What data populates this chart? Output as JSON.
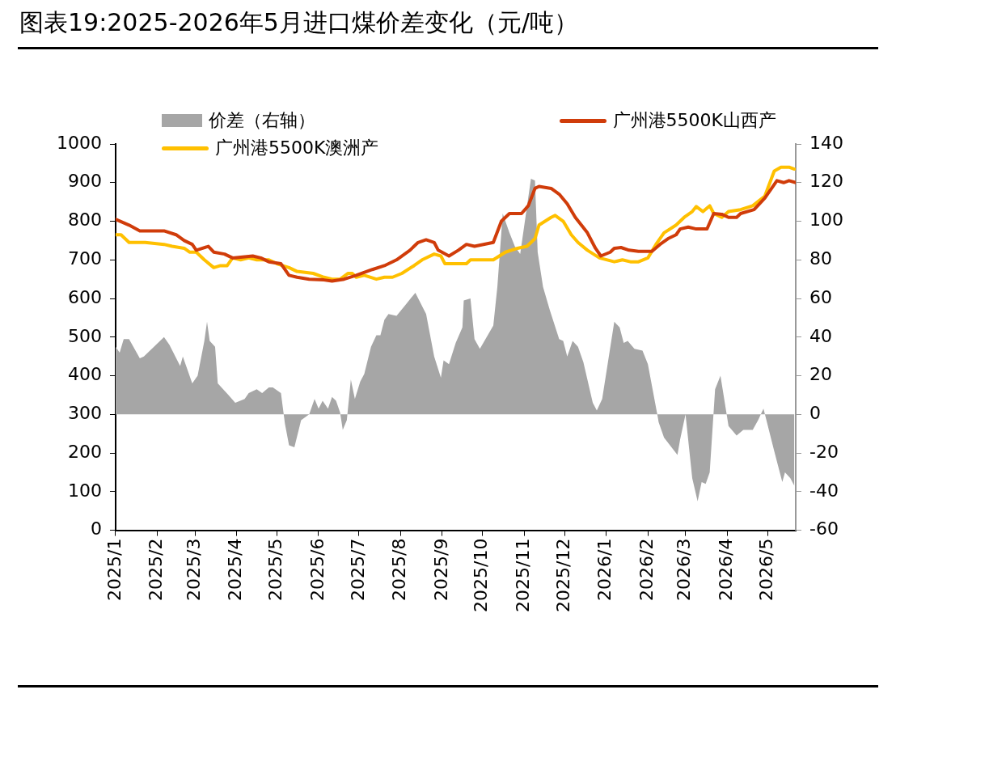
{
  "chart_data": {
    "type": "line",
    "title": "图表19:2025-2026年5月进口煤价差变化（元/吨）",
    "xlim": [
      "2025-01-01",
      "2026-05-22"
    ],
    "xticks": [
      {
        "value": "2025-01",
        "label": "2025/1"
      },
      {
        "value": "2025-02",
        "label": "2025/2"
      },
      {
        "value": "2025-03",
        "label": "2025/3"
      },
      {
        "value": "2025-04",
        "label": "2025/4"
      },
      {
        "value": "2025-05",
        "label": "2025/5"
      },
      {
        "value": "2025-06",
        "label": "2025/6"
      },
      {
        "value": "2025-07",
        "label": "2025/7"
      },
      {
        "value": "2025-08",
        "label": "2025/8"
      },
      {
        "value": "2025-09",
        "label": "2025/9"
      },
      {
        "value": "2025-10",
        "label": "2025/10"
      },
      {
        "value": "2025-11",
        "label": "2025/11"
      },
      {
        "value": "2025-12",
        "label": "2025/12"
      },
      {
        "value": "2026-01",
        "label": "2026/1"
      },
      {
        "value": "2026-02",
        "label": "2026/2"
      },
      {
        "value": "2026-03",
        "label": "2026/3"
      },
      {
        "value": "2026-04",
        "label": "2026/4"
      },
      {
        "value": "2026-05",
        "label": "2026/5"
      }
    ],
    "ylim": [
      0,
      1000
    ],
    "yticks": [
      0,
      100,
      200,
      300,
      400,
      500,
      600,
      700,
      800,
      900,
      1000
    ],
    "y2lim": [
      -60,
      140
    ],
    "y2ticks": [
      -60,
      -40,
      -20,
      0,
      20,
      40,
      60,
      80,
      100,
      120,
      140
    ],
    "legend": "top",
    "grid": false,
    "marker": "none",
    "series": [
      {
        "name": "价差（右轴）",
        "type": "area",
        "axis": "y2",
        "color": "#a6a6a6",
        "x": [
          "2025-01-01",
          "2025-01-04",
          "2025-01-07",
          "2025-01-11",
          "2025-01-19",
          "2025-01-22",
          "2025-02-06",
          "2025-02-10",
          "2025-02-18",
          "2025-02-20",
          "2025-02-23",
          "2025-02-27",
          "2025-03-03",
          "2025-03-08",
          "2025-03-10",
          "2025-03-12",
          "2025-03-16",
          "2025-03-18",
          "2025-03-26",
          "2025-03-31",
          "2025-04-07",
          "2025-04-10",
          "2025-04-16",
          "2025-04-20",
          "2025-04-25",
          "2025-04-28",
          "2025-05-04",
          "2025-05-07",
          "2025-05-10",
          "2025-05-14",
          "2025-05-19",
          "2025-05-25",
          "2025-05-29",
          "2025-06-01",
          "2025-06-04",
          "2025-06-08",
          "2025-06-11",
          "2025-06-14",
          "2025-06-17",
          "2025-06-19",
          "2025-06-22",
          "2025-06-25",
          "2025-06-28",
          "2025-07-02",
          "2025-07-05",
          "2025-07-10",
          "2025-07-14",
          "2025-07-17",
          "2025-07-20",
          "2025-07-23",
          "2025-07-29",
          "2025-08-05",
          "2025-08-12",
          "2025-08-20",
          "2025-08-26",
          "2025-08-31",
          "2025-09-02",
          "2025-09-06",
          "2025-09-11",
          "2025-09-16",
          "2025-09-17",
          "2025-09-22",
          "2025-09-25",
          "2025-09-29",
          "2025-10-09",
          "2025-10-12",
          "2025-10-16",
          "2025-10-21",
          "2025-10-25",
          "2025-10-29",
          "2025-11-06",
          "2025-11-09",
          "2025-11-11",
          "2025-11-15",
          "2025-11-20",
          "2025-11-27",
          "2025-11-30",
          "2025-12-03",
          "2025-12-07",
          "2025-12-11",
          "2025-12-15",
          "2025-12-22",
          "2025-12-25",
          "2025-12-29",
          "2026-01-07",
          "2026-01-11",
          "2026-01-14",
          "2026-01-17",
          "2026-01-22",
          "2026-01-28",
          "2026-02-01",
          "2026-02-08",
          "2026-02-09",
          "2026-02-13",
          "2026-02-23",
          "2026-02-25",
          "2026-03-01",
          "2026-03-06",
          "2026-03-10",
          "2026-03-13",
          "2026-03-16",
          "2026-03-19",
          "2026-03-23",
          "2026-03-27",
          "2026-04-02",
          "2026-04-08",
          "2026-04-13",
          "2026-04-20",
          "2026-04-24",
          "2026-04-28",
          "2026-05-06",
          "2026-05-12",
          "2026-05-14",
          "2026-05-18",
          "2026-05-21"
        ],
        "values": [
          35,
          32,
          39,
          39,
          29,
          30,
          40,
          36,
          25,
          30,
          24,
          16,
          20,
          38,
          48,
          38,
          35,
          16,
          10,
          6,
          8,
          11,
          13,
          11,
          14,
          14,
          11,
          -5,
          -16,
          -17,
          -3,
          0,
          8,
          3,
          7,
          3,
          9,
          7,
          1,
          -8,
          -3,
          18,
          8,
          17,
          21,
          35,
          41,
          41,
          49,
          52,
          51,
          57,
          63,
          52,
          30,
          19,
          28,
          26,
          37,
          45,
          59,
          60,
          39,
          34,
          46,
          66,
          104,
          94,
          87,
          83,
          122,
          121,
          84,
          66,
          54,
          39,
          38,
          30,
          38,
          35,
          27,
          6,
          2,
          8,
          48,
          45,
          37,
          38,
          34,
          33,
          26,
          0,
          -4,
          -12,
          -21,
          -13,
          0,
          -33,
          -45,
          -35,
          -36,
          -30,
          13,
          20,
          -6,
          -11,
          -8,
          -8,
          -3,
          3,
          -19,
          -35,
          -30,
          -33,
          -37
        ]
      },
      {
        "name": "广州港5500K山西产",
        "type": "line",
        "color": "#d03c0a",
        "x": [
          "2025-01-01",
          "2025-01-11",
          "2025-01-19",
          "2025-02-06",
          "2025-02-15",
          "2025-02-21",
          "2025-02-27",
          "2025-03-02",
          "2025-03-11",
          "2025-03-15",
          "2025-03-23",
          "2025-03-29",
          "2025-04-13",
          "2025-04-19",
          "2025-04-25",
          "2025-05-04",
          "2025-05-10",
          "2025-05-16",
          "2025-05-25",
          "2025-06-05",
          "2025-06-11",
          "2025-06-20",
          "2025-06-29",
          "2025-07-11",
          "2025-07-20",
          "2025-07-29",
          "2025-08-08",
          "2025-08-14",
          "2025-08-20",
          "2025-08-26",
          "2025-08-29",
          "2025-09-06",
          "2025-09-13",
          "2025-09-19",
          "2025-09-25",
          "2025-10-09",
          "2025-10-15",
          "2025-10-21",
          "2025-10-30",
          "2025-11-04",
          "2025-11-09",
          "2025-11-12",
          "2025-11-21",
          "2025-11-27",
          "2025-12-03",
          "2025-12-09",
          "2025-12-18",
          "2025-12-24",
          "2025-12-28",
          "2026-01-04",
          "2026-01-07",
          "2026-01-12",
          "2026-01-18",
          "2026-01-25",
          "2026-02-04",
          "2026-02-10",
          "2026-02-16",
          "2026-02-22",
          "2026-02-25",
          "2026-03-03",
          "2026-03-09",
          "2026-03-17",
          "2026-03-22",
          "2026-03-28",
          "2026-04-02",
          "2026-04-08",
          "2026-04-11",
          "2026-04-21",
          "2026-04-29",
          "2026-05-08",
          "2026-05-13",
          "2026-05-17",
          "2026-05-22"
        ],
        "values": [
          805,
          790,
          775,
          775,
          765,
          750,
          740,
          725,
          735,
          720,
          715,
          705,
          710,
          705,
          695,
          690,
          660,
          655,
          650,
          648,
          645,
          650,
          660,
          675,
          685,
          700,
          725,
          745,
          752,
          745,
          725,
          710,
          725,
          740,
          735,
          745,
          800,
          820,
          820,
          840,
          885,
          890,
          885,
          870,
          845,
          810,
          770,
          730,
          710,
          720,
          730,
          732,
          725,
          722,
          722,
          740,
          755,
          765,
          780,
          785,
          780,
          780,
          820,
          818,
          810,
          810,
          820,
          830,
          860,
          905,
          900,
          905,
          900
        ]
      },
      {
        "name": "广州港5500K澳洲产",
        "type": "line",
        "color": "#ffc000",
        "x": [
          "2025-01-01",
          "2025-01-05",
          "2025-01-11",
          "2025-01-23",
          "2025-02-06",
          "2025-02-12",
          "2025-02-21",
          "2025-02-25",
          "2025-03-02",
          "2025-03-08",
          "2025-03-15",
          "2025-03-20",
          "2025-03-25",
          "2025-03-29",
          "2025-04-04",
          "2025-04-10",
          "2025-04-16",
          "2025-04-25",
          "2025-05-01",
          "2025-05-10",
          "2025-05-16",
          "2025-05-28",
          "2025-06-05",
          "2025-06-11",
          "2025-06-17",
          "2025-06-23",
          "2025-06-26",
          "2025-06-29",
          "2025-07-05",
          "2025-07-14",
          "2025-07-20",
          "2025-07-26",
          "2025-08-02",
          "2025-08-11",
          "2025-08-17",
          "2025-08-26",
          "2025-08-31",
          "2025-09-03",
          "2025-09-19",
          "2025-09-22",
          "2025-10-09",
          "2025-10-18",
          "2025-10-27",
          "2025-11-03",
          "2025-11-09",
          "2025-11-12",
          "2025-11-21",
          "2025-11-24",
          "2025-11-30",
          "2025-12-06",
          "2025-12-11",
          "2025-12-18",
          "2025-12-27",
          "2026-01-07",
          "2026-01-13",
          "2026-01-19",
          "2026-01-25",
          "2026-02-01",
          "2026-02-07",
          "2026-02-13",
          "2026-02-22",
          "2026-02-28",
          "2026-03-06",
          "2026-03-09",
          "2026-03-14",
          "2026-03-19",
          "2026-03-22",
          "2026-03-28",
          "2026-04-02",
          "2026-04-11",
          "2026-04-20",
          "2026-04-29",
          "2026-05-06",
          "2026-05-11",
          "2026-05-17",
          "2026-05-21"
        ],
        "values": [
          765,
          765,
          745,
          745,
          740,
          735,
          730,
          720,
          720,
          700,
          680,
          685,
          685,
          705,
          700,
          705,
          700,
          700,
          690,
          680,
          670,
          665,
          655,
          650,
          650,
          665,
          665,
          655,
          660,
          650,
          655,
          655,
          665,
          685,
          700,
          715,
          710,
          690,
          690,
          700,
          700,
          720,
          730,
          735,
          755,
          790,
          810,
          815,
          800,
          765,
          745,
          725,
          705,
          695,
          700,
          695,
          695,
          705,
          740,
          770,
          790,
          810,
          825,
          838,
          825,
          840,
          820,
          810,
          825,
          830,
          840,
          865,
          930,
          940,
          940,
          935
        ]
      }
    ]
  }
}
